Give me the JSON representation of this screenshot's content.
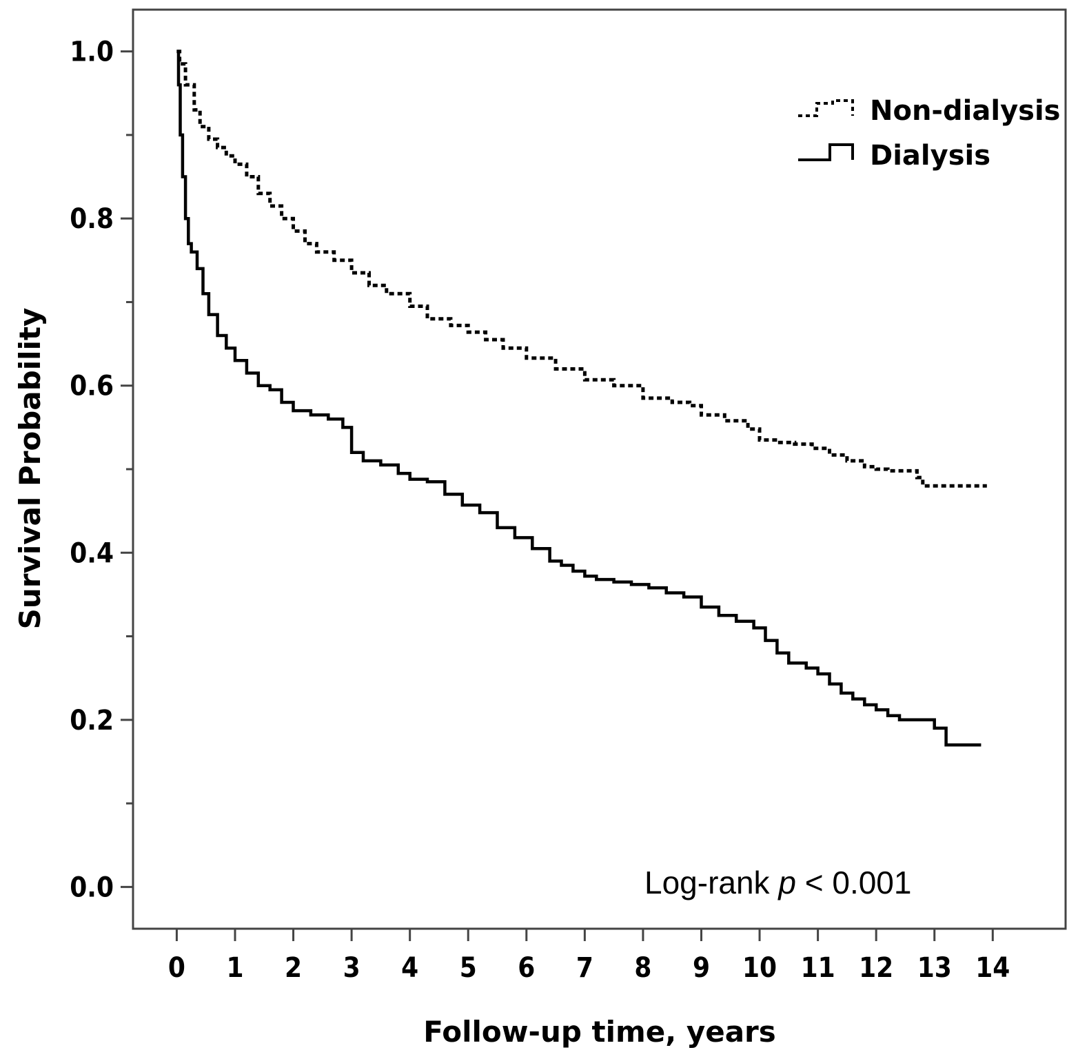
{
  "chart_data": {
    "type": "line",
    "subtype": "kaplan-meier step",
    "title": "",
    "xlabel": "Follow-up time, years",
    "ylabel": "Survival Probability",
    "xlim": [
      -0.75,
      15.25
    ],
    "ylim": [
      -0.05,
      1.05
    ],
    "x_ticks": [
      0,
      1,
      2,
      3,
      4,
      5,
      6,
      7,
      8,
      9,
      10,
      11,
      12,
      13,
      14
    ],
    "y_ticks_labeled": [
      0.0,
      0.2,
      0.4,
      0.6,
      0.8,
      1.0
    ],
    "y_ticks_labeled_text": [
      "0.0",
      "0.2",
      "0.4",
      "0.6",
      "0.8",
      "1.0"
    ],
    "y_ticks_minor": [
      0.1,
      0.3,
      0.5,
      0.7,
      0.9
    ],
    "grid": false,
    "legend_position": "top-right",
    "annotation": {
      "prefix": "Log-rank ",
      "italic": "p",
      "suffix": " < 0.001"
    },
    "series": [
      {
        "name": "Non-dialysis",
        "style": "dotted",
        "color": "#000000",
        "x": [
          0,
          0.05,
          0.15,
          0.3,
          0.4,
          0.55,
          0.7,
          0.85,
          1.0,
          1.2,
          1.4,
          1.6,
          1.8,
          2.0,
          2.2,
          2.4,
          2.7,
          3.0,
          3.3,
          3.6,
          4.0,
          4.3,
          4.7,
          5.0,
          5.3,
          5.6,
          6.0,
          6.5,
          7.0,
          7.5,
          8.0,
          8.5,
          8.8,
          9.0,
          9.4,
          9.8,
          10.0,
          10.3,
          10.6,
          10.9,
          11.2,
          11.5,
          11.8,
          12.0,
          12.2,
          12.6,
          12.7,
          12.8,
          13.0,
          13.5,
          13.9
        ],
        "y": [
          1.0,
          0.985,
          0.96,
          0.93,
          0.91,
          0.895,
          0.885,
          0.875,
          0.865,
          0.85,
          0.83,
          0.815,
          0.8,
          0.785,
          0.77,
          0.76,
          0.75,
          0.735,
          0.72,
          0.71,
          0.695,
          0.68,
          0.672,
          0.664,
          0.655,
          0.645,
          0.633,
          0.62,
          0.607,
          0.6,
          0.585,
          0.58,
          0.576,
          0.565,
          0.558,
          0.548,
          0.535,
          0.532,
          0.53,
          0.525,
          0.517,
          0.51,
          0.503,
          0.5,
          0.498,
          0.498,
          0.49,
          0.48,
          0.48,
          0.48,
          0.48
        ]
      },
      {
        "name": "Dialysis",
        "style": "solid",
        "color": "#000000",
        "x": [
          0,
          0.03,
          0.06,
          0.1,
          0.15,
          0.2,
          0.25,
          0.35,
          0.45,
          0.55,
          0.7,
          0.85,
          1.0,
          1.2,
          1.4,
          1.6,
          1.8,
          2.0,
          2.3,
          2.6,
          2.85,
          3.0,
          3.2,
          3.5,
          3.8,
          4.0,
          4.3,
          4.6,
          4.9,
          5.2,
          5.5,
          5.8,
          6.1,
          6.4,
          6.6,
          6.8,
          7.0,
          7.2,
          7.5,
          7.8,
          8.1,
          8.4,
          8.7,
          9.0,
          9.3,
          9.6,
          9.9,
          10.1,
          10.3,
          10.5,
          10.8,
          11.0,
          11.2,
          11.4,
          11.6,
          11.8,
          12.0,
          12.2,
          12.4,
          12.6,
          12.8,
          13.0,
          13.2,
          13.4,
          13.6,
          13.8
        ],
        "y": [
          1.0,
          0.96,
          0.9,
          0.85,
          0.8,
          0.77,
          0.76,
          0.74,
          0.71,
          0.685,
          0.66,
          0.645,
          0.63,
          0.615,
          0.6,
          0.595,
          0.58,
          0.57,
          0.565,
          0.56,
          0.55,
          0.52,
          0.51,
          0.505,
          0.495,
          0.488,
          0.485,
          0.47,
          0.457,
          0.448,
          0.43,
          0.418,
          0.405,
          0.39,
          0.385,
          0.378,
          0.372,
          0.368,
          0.365,
          0.362,
          0.358,
          0.352,
          0.347,
          0.335,
          0.325,
          0.318,
          0.31,
          0.295,
          0.28,
          0.268,
          0.262,
          0.255,
          0.243,
          0.232,
          0.225,
          0.218,
          0.212,
          0.205,
          0.2,
          0.2,
          0.2,
          0.19,
          0.17,
          0.17,
          0.17,
          0.17
        ]
      }
    ]
  }
}
